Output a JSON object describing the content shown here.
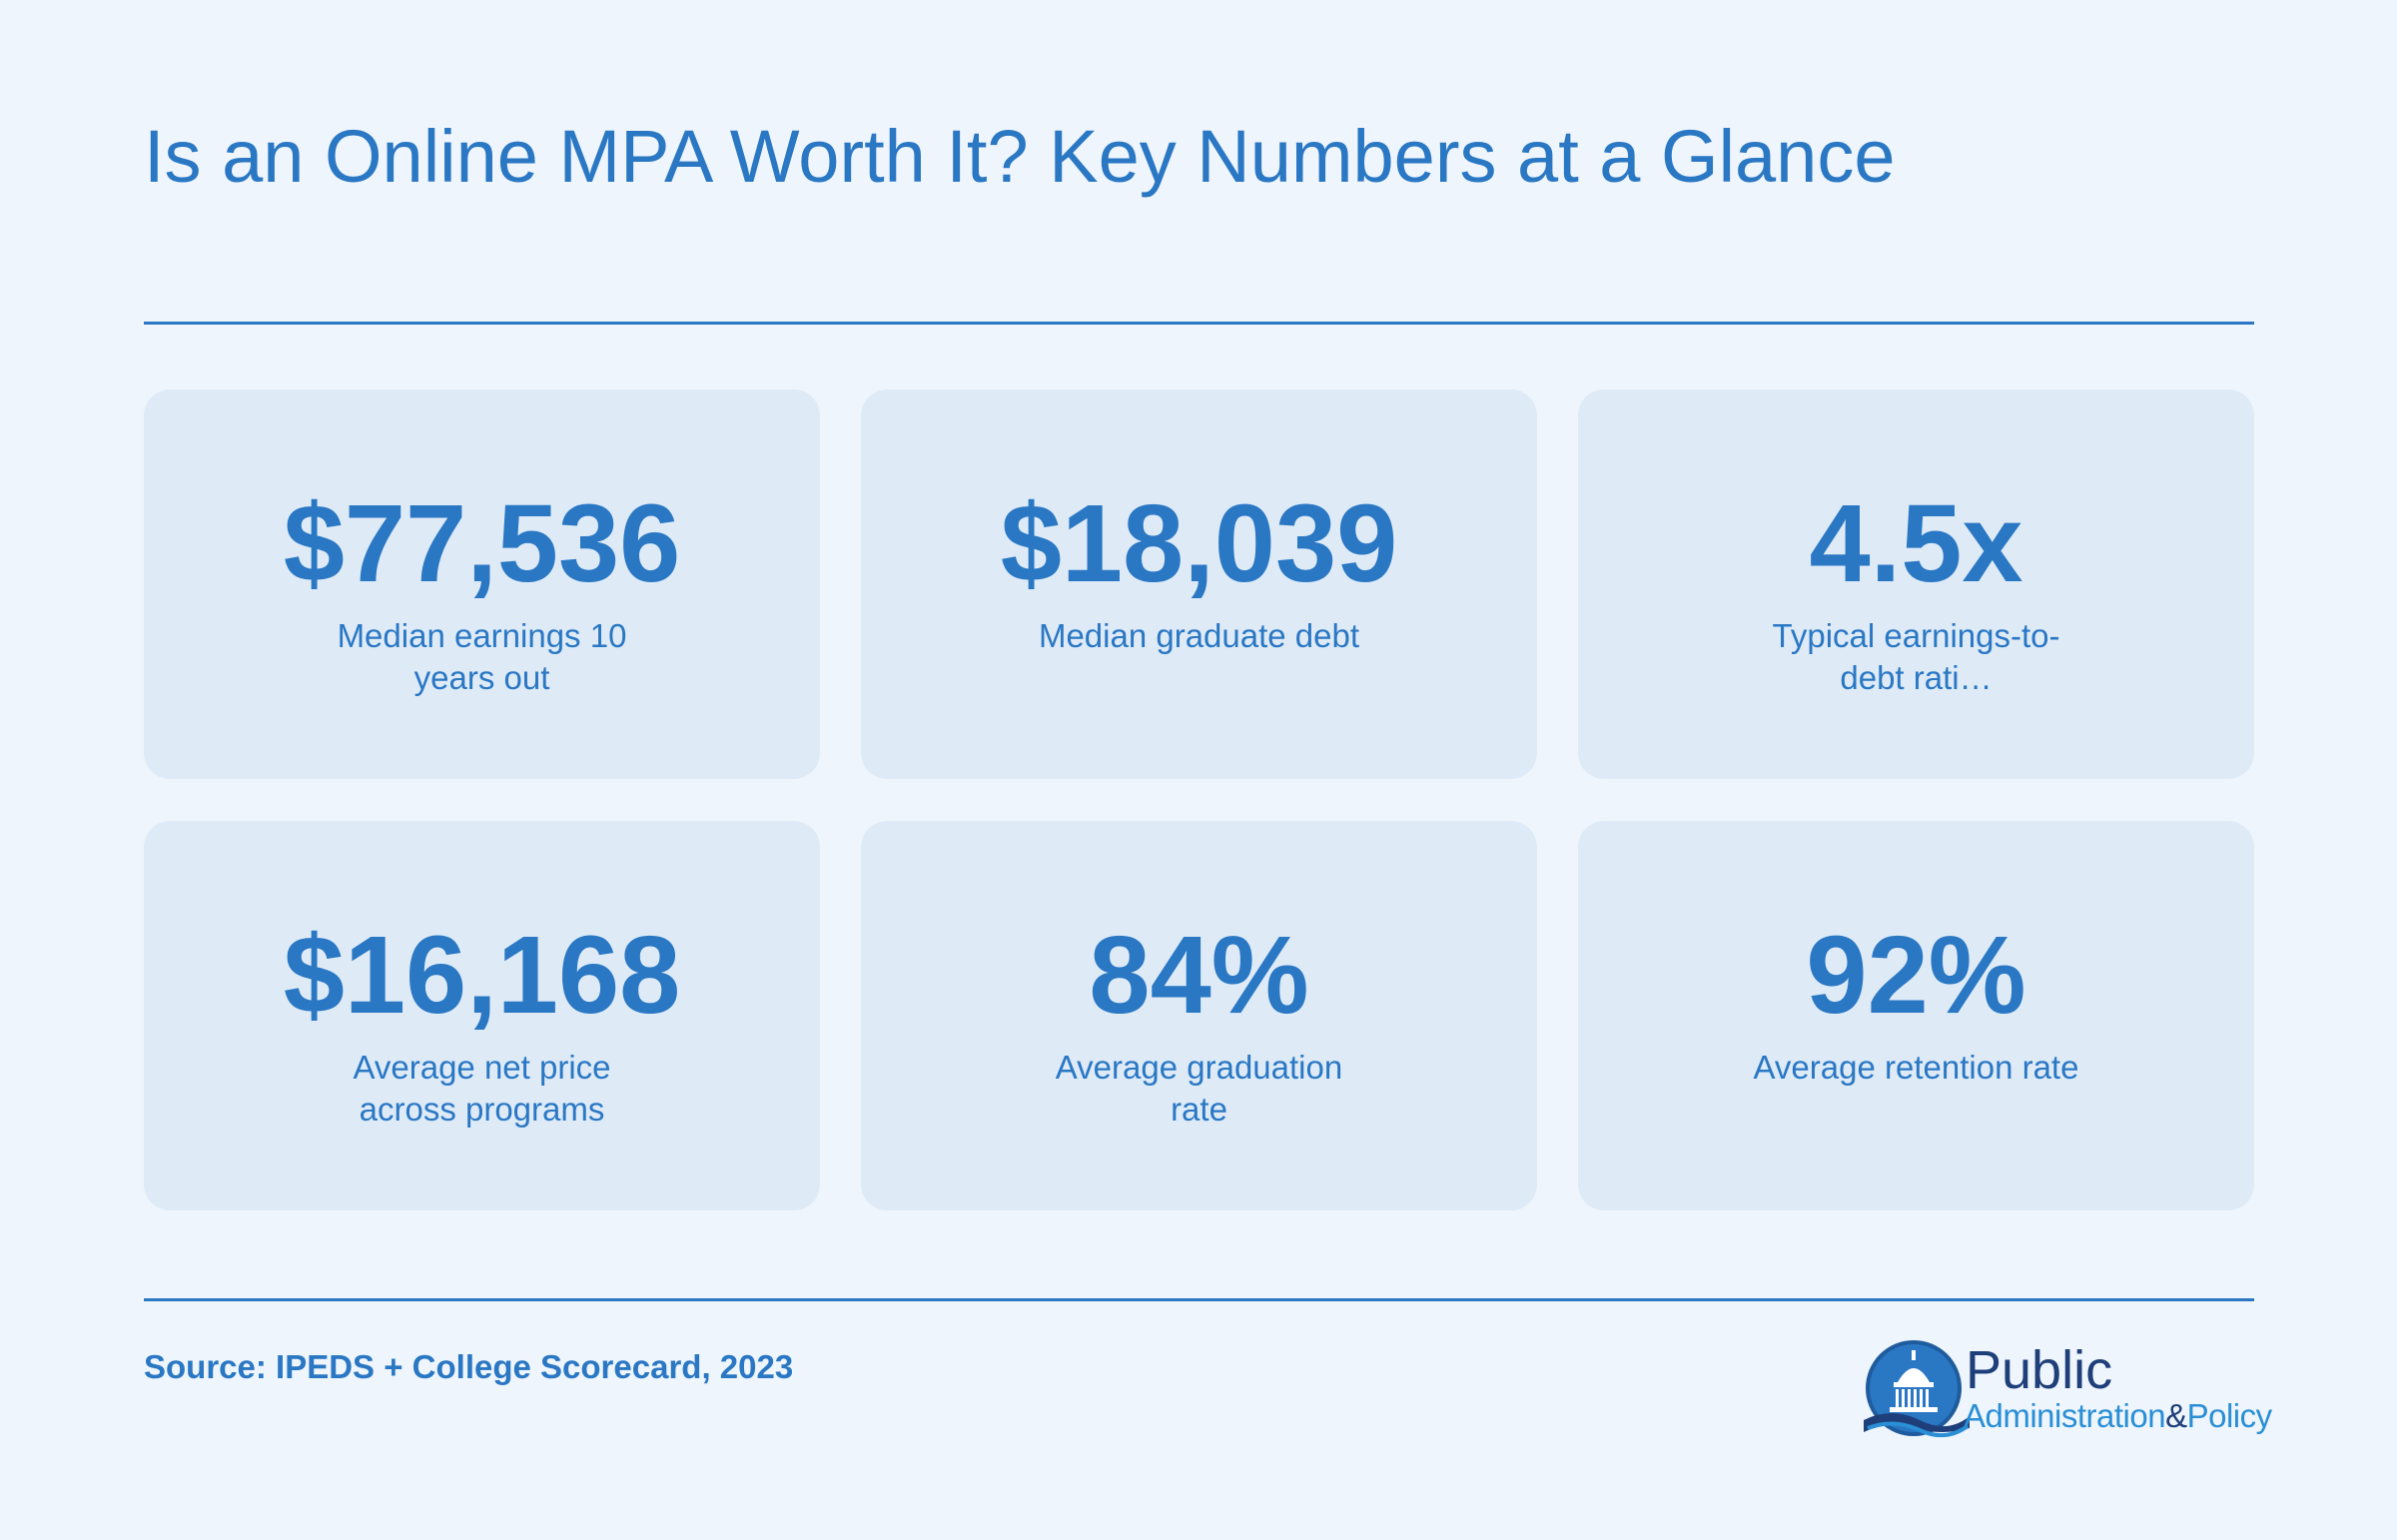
{
  "header": {
    "title": "Is an Online MPA Worth It? Key Numbers at a Glance"
  },
  "stats": [
    {
      "value": "$77,536",
      "label": "Median earnings 10 years out"
    },
    {
      "value": "$18,039",
      "label": "Median graduate debt"
    },
    {
      "value": "4.5x",
      "label": "Typical earnings-to-debt rati…"
    },
    {
      "value": "$16,168",
      "label": "Average net price across programs"
    },
    {
      "value": "84%",
      "label": "Average graduation rate"
    },
    {
      "value": "92%",
      "label": "Average retention rate"
    }
  ],
  "footer": {
    "source": "Source: IPEDS + College Scorecard, 2023"
  },
  "logo": {
    "line1": "Public",
    "line2_a": "Administration",
    "line2_amp": "&",
    "line2_b": "Policy",
    "icon": "capitol-dome-icon"
  },
  "colors": {
    "background": "#eef5fc",
    "card": "#deebf7",
    "accent": "#2a77c4",
    "logo_dark": "#1f3f7a",
    "logo_light": "#2a8fd6"
  }
}
